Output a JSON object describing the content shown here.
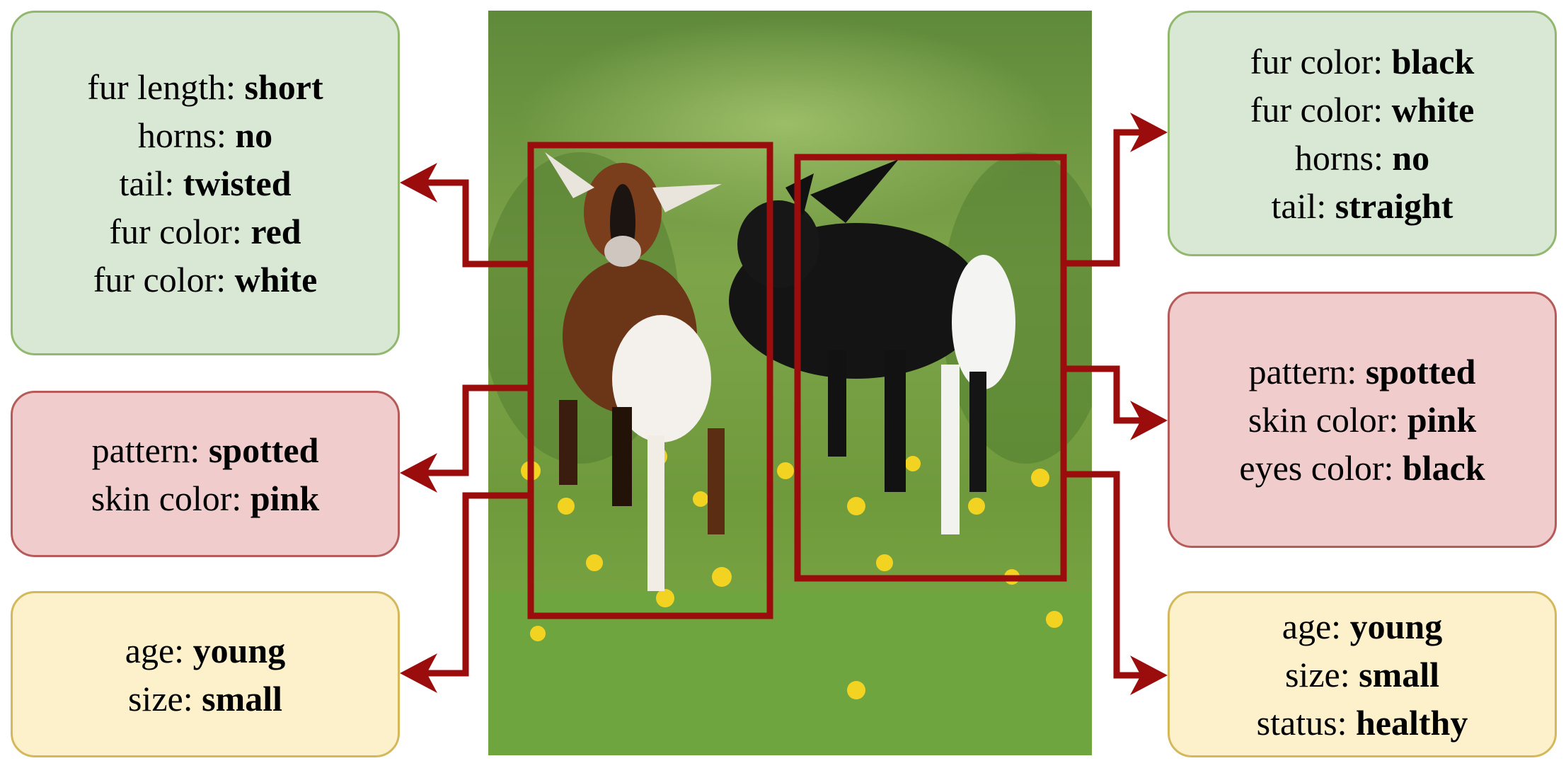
{
  "left_boxes": {
    "top": [
      {
        "label": "fur length: ",
        "value": "short"
      },
      {
        "label": "horns: ",
        "value": "no"
      },
      {
        "label": "tail: ",
        "value": "twisted"
      },
      {
        "label": "fur color: ",
        "value": "red"
      },
      {
        "label": "fur color: ",
        "value": "white"
      }
    ],
    "mid": [
      {
        "label": "pattern: ",
        "value": "spotted"
      },
      {
        "label": "skin color: ",
        "value": "pink"
      }
    ],
    "bot": [
      {
        "label": "age: ",
        "value": "young"
      },
      {
        "label": "size: ",
        "value": "small"
      }
    ]
  },
  "right_boxes": {
    "top": [
      {
        "label": "fur color: ",
        "value": "black"
      },
      {
        "label": "fur color: ",
        "value": "white"
      },
      {
        "label": "horns: ",
        "value": "no"
      },
      {
        "label": "tail: ",
        "value": "straight"
      }
    ],
    "mid": [
      {
        "label": "pattern: ",
        "value": "spotted"
      },
      {
        "label": "skin color: ",
        "value": "pink"
      },
      {
        "label": "eyes color: ",
        "value": "black"
      }
    ],
    "bot": [
      {
        "label": "age: ",
        "value": "young"
      },
      {
        "label": "size: ",
        "value": "small"
      },
      {
        "label": "status: ",
        "value": "healthy"
      }
    ]
  },
  "colors": {
    "connector": "#9b0d0d",
    "green_fill": "#d9e8d5",
    "red_fill": "#f0cccc",
    "yellow_fill": "#fdf1cb"
  },
  "photo": {
    "subjects": [
      "brown-white-goat-kid",
      "black-white-goat-kid"
    ]
  }
}
